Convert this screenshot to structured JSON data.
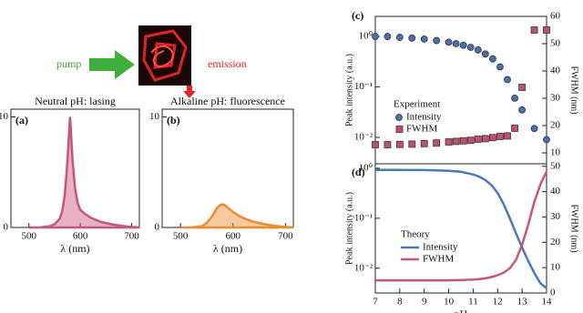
{
  "diagram": {
    "pump": "pump",
    "emission": "emission"
  },
  "chart_data": [
    {
      "type": "area",
      "label": "(a)",
      "title": "Neutral pH: lasing",
      "x_label": "λ (nm)",
      "x": [
        500,
        520,
        540,
        550,
        560,
        565,
        570,
        575,
        580,
        585,
        590,
        595,
        600,
        610,
        620,
        640,
        660,
        680,
        700,
        715
      ],
      "values": [
        0,
        0,
        0.1,
        0.3,
        0.8,
        1.5,
        3,
        6,
        10,
        6,
        3.5,
        2.2,
        1.6,
        1.2,
        0.9,
        0.5,
        0.3,
        0.15,
        0.05,
        0
      ],
      "color": "#c9557a",
      "xlim": [
        465,
        715
      ],
      "xticks": [
        500,
        600,
        700
      ],
      "ylim": [
        0,
        10.7
      ],
      "yticks": [
        0,
        10
      ]
    },
    {
      "type": "area",
      "label": "(b)",
      "title": "Alkaline pH: fluorescence",
      "x_label": "λ (nm)",
      "x": [
        500,
        520,
        540,
        550,
        560,
        565,
        570,
        575,
        580,
        585,
        590,
        595,
        600,
        610,
        620,
        640,
        660,
        680,
        700,
        715
      ],
      "values": [
        0,
        0,
        0.1,
        0.4,
        1.0,
        1.4,
        1.8,
        2.0,
        2.1,
        2.0,
        1.8,
        1.6,
        1.4,
        1.1,
        0.85,
        0.5,
        0.3,
        0.15,
        0.05,
        0
      ],
      "color": "#f08a2c",
      "xlim": [
        465,
        715
      ],
      "xticks": [
        500,
        600,
        700
      ],
      "ylim": [
        0,
        10.7
      ],
      "yticks": [
        0,
        10
      ]
    },
    {
      "type": "scatter",
      "label": "(c)",
      "y_label": "Peak intensity (a.u.)",
      "y2_label": "FWHM (nm)",
      "legend_title": "Experiment",
      "y_scale": "log",
      "x": [
        7,
        7.5,
        8,
        8.5,
        9,
        9.5,
        10,
        10.3,
        10.6,
        10.9,
        11.2,
        11.5,
        11.8,
        12.1,
        12.4,
        12.7,
        13,
        13.5,
        14
      ],
      "series": [
        {
          "name": "Intensity",
          "color": "#4a6fb5",
          "marker": "circle",
          "values": [
            1.0,
            1.0,
            0.96,
            0.93,
            0.89,
            0.83,
            0.77,
            0.72,
            0.67,
            0.61,
            0.54,
            0.45,
            0.36,
            0.25,
            0.14,
            0.06,
            0.035,
            0.015,
            0.009
          ]
        },
        {
          "name": "FWHM",
          "color": "#c0506e",
          "marker": "square",
          "axis": "y2",
          "values": [
            13,
            13,
            13.1,
            13.2,
            13.4,
            13.6,
            14,
            14.2,
            14.4,
            14.6,
            15,
            15.2,
            15.6,
            16,
            16.2,
            19,
            34,
            55,
            55
          ]
        }
      ],
      "xlim": [
        7,
        14
      ],
      "ylim": [
        0.003,
        2.5
      ],
      "yticks": [
        {
          "value": 1,
          "label": "10⁰"
        },
        {
          "value": 0.1,
          "label": "10⁻¹"
        },
        {
          "value": 0.01,
          "label": "10⁻²"
        }
      ],
      "y2lim": [
        6,
        60
      ],
      "y2ticks": [
        10,
        20,
        30,
        40,
        50,
        60
      ]
    },
    {
      "type": "line",
      "label": "(d)",
      "y_label": "Peak intensity (a.u.)",
      "y2_label": "FWHM (nm)",
      "legend_title": "Theory",
      "y_scale": "log",
      "x_label": "pH",
      "x": [
        7,
        7.5,
        8,
        8.5,
        9,
        9.5,
        10,
        10.5,
        11,
        11.25,
        11.5,
        11.75,
        12,
        12.25,
        12.5,
        12.75,
        13,
        13.25,
        13.5,
        13.75,
        14
      ],
      "series": [
        {
          "name": "Intensity",
          "color": "#4a78c0",
          "values": [
            0.93,
            0.93,
            0.93,
            0.92,
            0.92,
            0.91,
            0.89,
            0.85,
            0.75,
            0.68,
            0.58,
            0.46,
            0.32,
            0.19,
            0.1,
            0.05,
            0.026,
            0.014,
            0.008,
            0.005,
            0.004
          ]
        },
        {
          "name": "FWHM",
          "color": "#c9557a",
          "axis": "y2",
          "values": [
            5,
            5,
            5,
            5,
            5,
            5,
            5,
            5.1,
            5.3,
            5.5,
            5.8,
            6.3,
            7,
            8,
            9.8,
            13,
            19,
            27,
            36,
            43,
            48
          ]
        }
      ],
      "xlim": [
        7,
        14
      ],
      "xticks": [
        7,
        8,
        9,
        10,
        11,
        12,
        13,
        14
      ],
      "ylim": [
        0.0032,
        1.23
      ],
      "yticks": [
        {
          "value": 1,
          "label": "10⁰"
        },
        {
          "value": 0.1,
          "label": "10⁻¹"
        },
        {
          "value": 0.01,
          "label": "10⁻²"
        }
      ],
      "y2lim": [
        0,
        51
      ],
      "y2ticks": [
        0,
        10,
        20,
        30,
        40,
        50
      ]
    }
  ]
}
